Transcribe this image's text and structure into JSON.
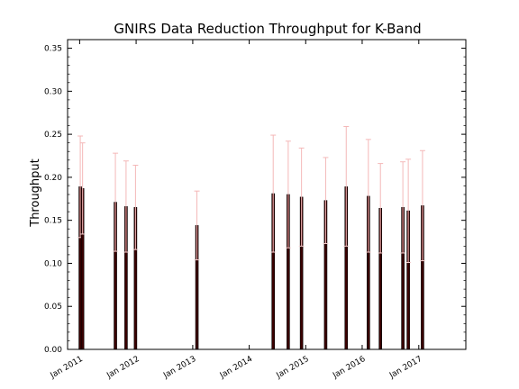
{
  "chart_data": {
    "type": "bar",
    "title": "GNIRS Data Reduction Throughput for K-Band",
    "xlabel": "",
    "ylabel": "Throughput",
    "xlim": [
      "2010-10-15",
      "2017-11-01"
    ],
    "ylim": [
      0.0,
      0.36
    ],
    "x_ticks": [
      {
        "label": "Jan 2011",
        "date": "2011-01-01"
      },
      {
        "label": "Jan 2012",
        "date": "2012-01-01"
      },
      {
        "label": "Jan 2013",
        "date": "2013-01-01"
      },
      {
        "label": "Jan 2014",
        "date": "2014-01-01"
      },
      {
        "label": "Jan 2015",
        "date": "2015-01-01"
      },
      {
        "label": "Jan 2016",
        "date": "2016-01-01"
      },
      {
        "label": "Jan 2017",
        "date": "2017-01-01"
      }
    ],
    "y_ticks": [
      "0.00",
      "0.05",
      "0.10",
      "0.15",
      "0.20",
      "0.25",
      "0.30",
      "0.35"
    ],
    "grid": false,
    "bar_color": "#3a0000",
    "error_color": "#f4b8b8",
    "points": [
      {
        "date": "2011-01-05",
        "value": 0.189,
        "err_high": 0.248,
        "err_low": 0.13
      },
      {
        "date": "2011-01-20",
        "value": 0.187,
        "err_high": 0.24,
        "err_low": 0.134
      },
      {
        "date": "2011-08-20",
        "value": 0.171,
        "err_high": 0.228,
        "err_low": 0.114
      },
      {
        "date": "2011-10-28",
        "value": 0.166,
        "err_high": 0.219,
        "err_low": 0.113
      },
      {
        "date": "2011-12-28",
        "value": 0.165,
        "err_high": 0.214,
        "err_low": 0.116
      },
      {
        "date": "2013-01-28",
        "value": 0.144,
        "err_high": 0.184,
        "err_low": 0.104
      },
      {
        "date": "2014-06-05",
        "value": 0.181,
        "err_high": 0.249,
        "err_low": 0.113
      },
      {
        "date": "2014-09-10",
        "value": 0.18,
        "err_high": 0.242,
        "err_low": 0.118
      },
      {
        "date": "2014-12-05",
        "value": 0.177,
        "err_high": 0.234,
        "err_low": 0.12
      },
      {
        "date": "2015-05-10",
        "value": 0.173,
        "err_high": 0.223,
        "err_low": 0.123
      },
      {
        "date": "2015-09-20",
        "value": 0.189,
        "err_high": 0.259,
        "err_low": 0.12
      },
      {
        "date": "2016-02-10",
        "value": 0.178,
        "err_high": 0.244,
        "err_low": 0.113
      },
      {
        "date": "2016-04-28",
        "value": 0.164,
        "err_high": 0.216,
        "err_low": 0.112
      },
      {
        "date": "2016-09-20",
        "value": 0.165,
        "err_high": 0.218,
        "err_low": 0.112
      },
      {
        "date": "2016-10-25",
        "value": 0.161,
        "err_high": 0.221,
        "err_low": 0.101
      },
      {
        "date": "2017-01-25",
        "value": 0.167,
        "err_high": 0.231,
        "err_low": 0.103
      }
    ]
  }
}
